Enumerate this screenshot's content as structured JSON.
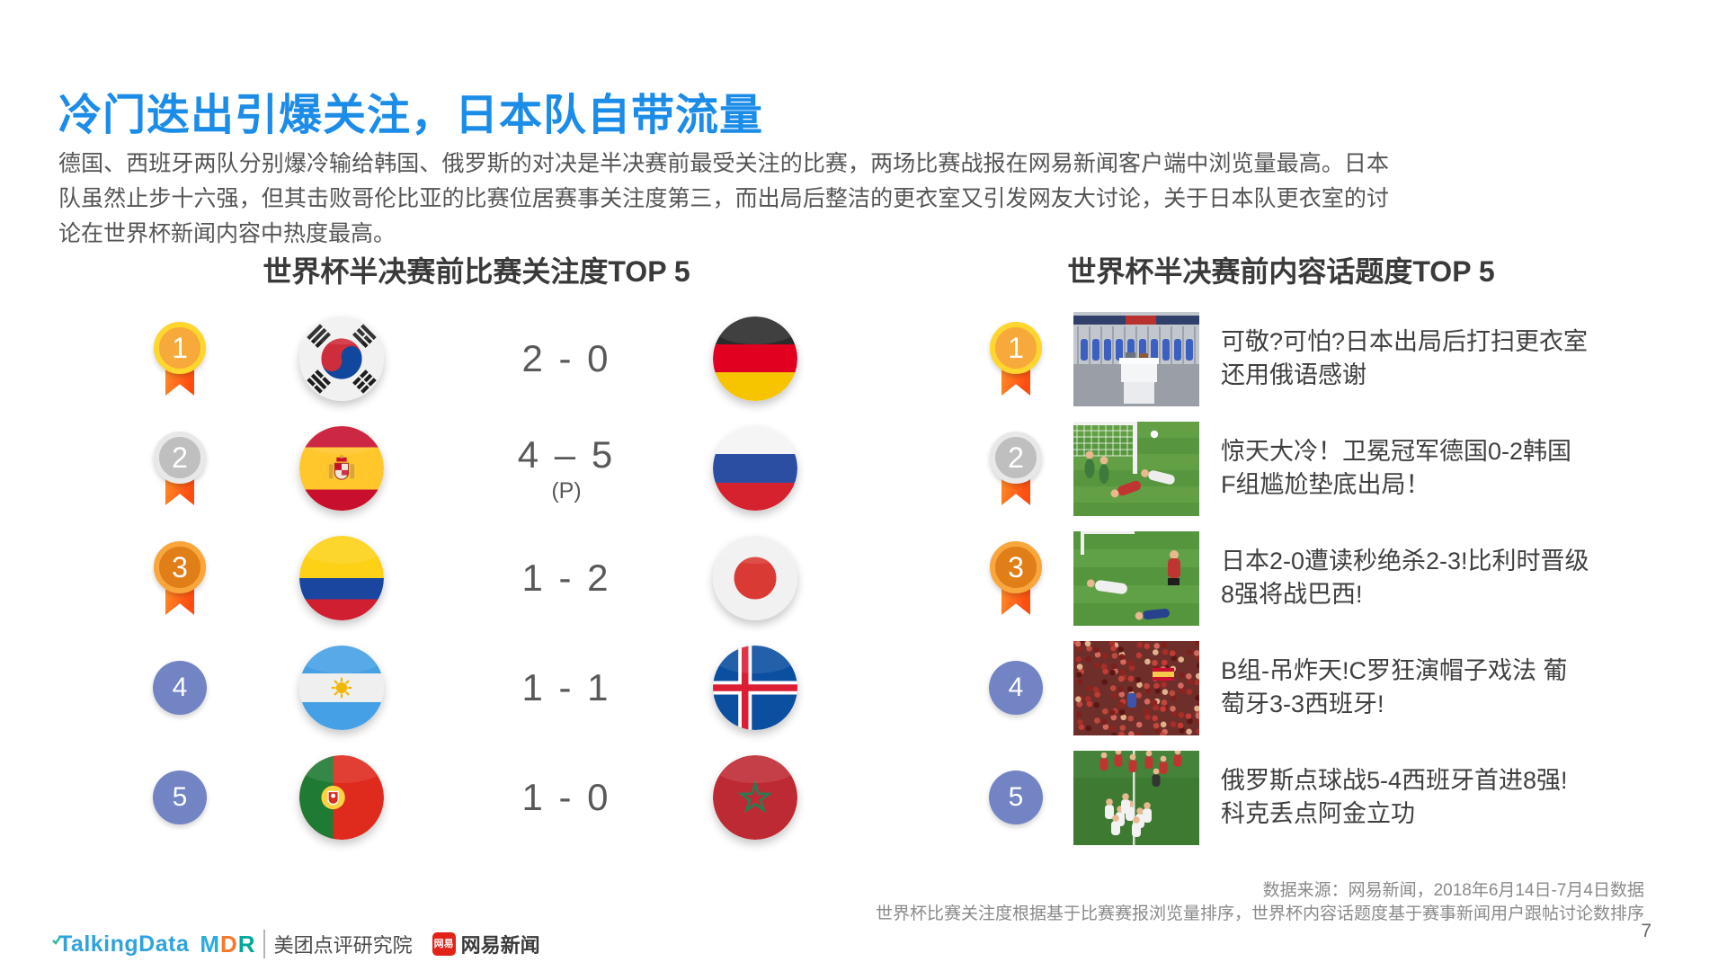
{
  "slide": {
    "title": "冷门迭出引爆关注，日本队自带流量",
    "intro": "德国、西班牙两队分别爆冷输给韩国、俄罗斯的对决是半决赛前最受关注的比赛，两场比赛战报在网易新闻客户端中浏览量最高。日本队虽然止步十六强，但其击败哥伦比亚的比赛位居赛事关注度第三，而出局后整洁的更衣室又引发网友大讨论，关于日本队更衣室的讨论在世界杯新闻内容中热度最高。",
    "page_number": "7"
  },
  "match_panel": {
    "header": "世界杯半决赛前比赛关注度TOP 5",
    "rows": [
      {
        "rank": "1",
        "medal": "gold",
        "home_team": "south-korea",
        "away_team": "germany",
        "score": "2 - 0",
        "score_note": ""
      },
      {
        "rank": "2",
        "medal": "silver",
        "home_team": "spain",
        "away_team": "russia",
        "score": "4 – 5",
        "score_note": "(P)"
      },
      {
        "rank": "3",
        "medal": "bronze",
        "home_team": "colombia",
        "away_team": "japan",
        "score": "1 - 2",
        "score_note": ""
      },
      {
        "rank": "4",
        "medal": "plain",
        "home_team": "argentina",
        "away_team": "iceland",
        "score": "1 - 1",
        "score_note": ""
      },
      {
        "rank": "5",
        "medal": "plain",
        "home_team": "portugal",
        "away_team": "morocco",
        "score": "1 - 0",
        "score_note": ""
      }
    ]
  },
  "topic_panel": {
    "header": "世界杯半决赛前内容话题度TOP 5",
    "items": [
      {
        "rank": "1",
        "medal": "gold",
        "thumbnail": "locker-room",
        "headline": "可敬?可怕?日本出局后打扫更衣室 还用俄语感谢"
      },
      {
        "rank": "2",
        "medal": "silver",
        "thumbnail": "germany-korea-goal",
        "headline": "惊天大冷！卫冕冠军德国0-2韩国 F组尴尬垫底出局！"
      },
      {
        "rank": "3",
        "medal": "bronze",
        "thumbnail": "japan-belgium-match",
        "headline": "日本2-0遭读秒绝杀2-3!比利时晋级8强将战巴西!"
      },
      {
        "rank": "4",
        "medal": "plain",
        "thumbnail": "spain-fans-crowd",
        "headline": "B组-吊炸天!C罗狂演帽子戏法 葡萄牙3-3西班牙!"
      },
      {
        "rank": "5",
        "medal": "plain",
        "thumbnail": "russia-celebration",
        "headline": "俄罗斯点球战5-4西班牙首进8强!科克丢点阿金立功"
      }
    ]
  },
  "footer": {
    "source_line_1": "数据来源：网易新闻，2018年6月14日-7月4日数据",
    "source_line_2": "世界杯比赛关注度根据基于比赛赛报浏览量排序，世界杯内容话题度基于赛事新闻用户跟帖讨论数排序",
    "logos": {
      "talkingdata": "TalkingData",
      "mdr_letters": [
        "M",
        "D",
        "R"
      ],
      "research_label": "美团点评研究院",
      "netease_badge": "网易",
      "netease_label": "网易新闻"
    }
  },
  "colors": {
    "title_blue": "#1B8CE8",
    "body_gray": "#555555",
    "gold_medal": "#F7A93B",
    "silver_medal": "#BFBFBF",
    "bronze_medal": "#E07E17",
    "ribbon_orange": "#FF5A1A",
    "rank_blue": "#7384C5"
  }
}
